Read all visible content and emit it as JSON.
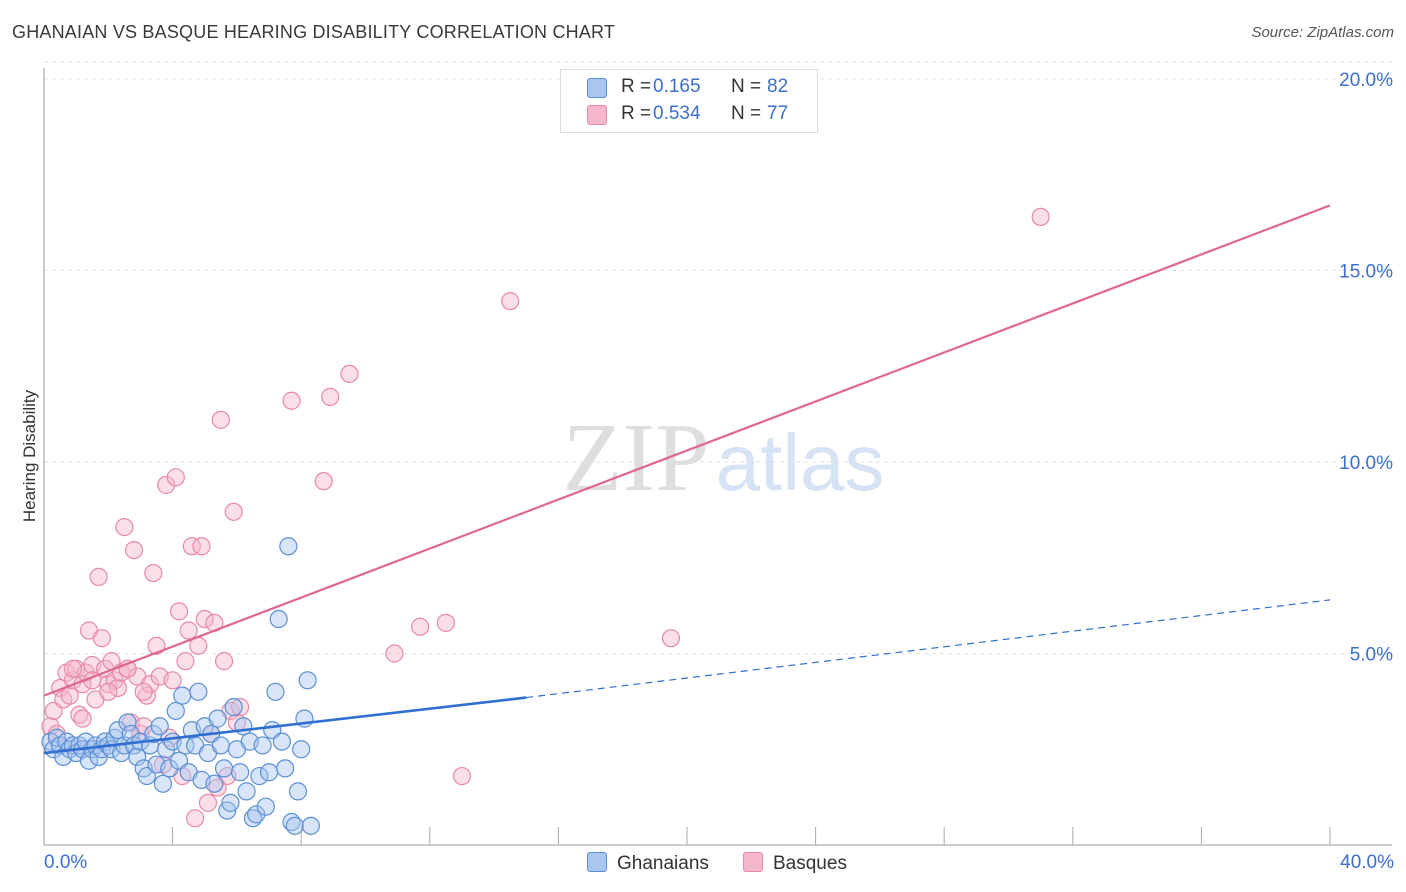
{
  "title": "GHANAIAN VS BASQUE HEARING DISABILITY CORRELATION CHART",
  "source": "Source: ZipAtlas.com",
  "colors": {
    "ghanaian_fill": "#a9c6ef",
    "ghanaian_stroke": "#5b8fd6",
    "ghanaian_line": "#2f6fcf",
    "basque_fill": "#f5b8cb",
    "basque_stroke": "#e889a7",
    "basque_line": "#e0668f",
    "tick_text": "#3a6fd0",
    "grid": "#e2e2e2"
  },
  "legend": {
    "rows": [
      {
        "r_label": "R =",
        "r_value": "0.165",
        "n_label": "N =",
        "n_value": "82"
      },
      {
        "r_label": "R =",
        "r_value": "0.534",
        "n_label": "N =",
        "n_value": "77"
      }
    ],
    "bottom": [
      "Ghanaians",
      "Basques"
    ]
  },
  "watermark": {
    "zip": "ZIP",
    "atlas": "atlas"
  },
  "chart_data": {
    "type": "scatter",
    "title": "GHANAIAN VS BASQUE HEARING DISABILITY CORRELATION CHART",
    "xlabel": "",
    "ylabel": "Hearing Disability",
    "xlim": [
      0,
      40
    ],
    "ylim": [
      0,
      20
    ],
    "x_tick_labels": [
      "0.0%",
      "40.0%"
    ],
    "y_ticks": [
      5,
      10,
      15,
      20
    ],
    "y_tick_labels": [
      "5.0%",
      "10.0%",
      "15.0%",
      "20.0%"
    ],
    "grid": true,
    "legend_position": "top-center",
    "series": [
      {
        "name": "Ghanaians",
        "r": 0.165,
        "n": 82,
        "trend": {
          "x0": 0,
          "y0": 2.4,
          "x1": 15,
          "y1": 3.85,
          "dashed_to_x": 40,
          "dashed_to_y": 6.4
        },
        "points": [
          [
            0.2,
            2.7
          ],
          [
            0.3,
            2.5
          ],
          [
            0.4,
            2.8
          ],
          [
            0.5,
            2.6
          ],
          [
            0.6,
            2.3
          ],
          [
            0.7,
            2.7
          ],
          [
            0.8,
            2.5
          ],
          [
            0.9,
            2.6
          ],
          [
            1.0,
            2.4
          ],
          [
            1.1,
            2.6
          ],
          [
            1.2,
            2.5
          ],
          [
            1.3,
            2.7
          ],
          [
            1.4,
            2.2
          ],
          [
            1.5,
            2.5
          ],
          [
            1.6,
            2.6
          ],
          [
            1.7,
            2.3
          ],
          [
            1.8,
            2.5
          ],
          [
            1.9,
            2.7
          ],
          [
            2.0,
            2.6
          ],
          [
            2.1,
            2.5
          ],
          [
            2.2,
            2.8
          ],
          [
            2.3,
            3.0
          ],
          [
            2.4,
            2.4
          ],
          [
            2.5,
            2.6
          ],
          [
            2.6,
            3.2
          ],
          [
            2.7,
            2.9
          ],
          [
            2.8,
            2.6
          ],
          [
            2.9,
            2.3
          ],
          [
            3.0,
            2.7
          ],
          [
            3.1,
            2.0
          ],
          [
            3.2,
            1.8
          ],
          [
            3.3,
            2.6
          ],
          [
            3.4,
            2.9
          ],
          [
            3.5,
            2.1
          ],
          [
            3.6,
            3.1
          ],
          [
            3.7,
            1.6
          ],
          [
            3.8,
            2.5
          ],
          [
            3.9,
            2.0
          ],
          [
            4.0,
            2.7
          ],
          [
            4.1,
            3.5
          ],
          [
            4.2,
            2.2
          ],
          [
            4.3,
            3.9
          ],
          [
            4.4,
            2.6
          ],
          [
            4.5,
            1.9
          ],
          [
            4.6,
            3.0
          ],
          [
            4.7,
            2.6
          ],
          [
            4.8,
            4.0
          ],
          [
            4.9,
            1.7
          ],
          [
            5.0,
            3.1
          ],
          [
            5.1,
            2.4
          ],
          [
            5.2,
            2.9
          ],
          [
            5.3,
            1.6
          ],
          [
            5.4,
            3.3
          ],
          [
            5.5,
            2.6
          ],
          [
            5.6,
            2.0
          ],
          [
            5.7,
            0.9
          ],
          [
            5.8,
            1.1
          ],
          [
            5.9,
            3.6
          ],
          [
            6.0,
            2.5
          ],
          [
            6.1,
            1.9
          ],
          [
            6.2,
            3.1
          ],
          [
            6.3,
            1.4
          ],
          [
            6.4,
            2.7
          ],
          [
            6.5,
            0.7
          ],
          [
            6.6,
            0.8
          ],
          [
            6.7,
            1.8
          ],
          [
            6.8,
            2.6
          ],
          [
            6.9,
            1.0
          ],
          [
            7.0,
            1.9
          ],
          [
            7.1,
            3.0
          ],
          [
            7.2,
            4.0
          ],
          [
            7.3,
            5.9
          ],
          [
            7.4,
            2.7
          ],
          [
            7.5,
            2.0
          ],
          [
            7.6,
            7.8
          ],
          [
            7.7,
            0.6
          ],
          [
            7.8,
            0.5
          ],
          [
            7.9,
            1.4
          ],
          [
            8.0,
            2.5
          ],
          [
            8.1,
            3.3
          ],
          [
            8.2,
            4.3
          ],
          [
            8.3,
            0.5
          ]
        ],
        "spread_note_ignored": true
      },
      {
        "name": "Basques",
        "r": 0.534,
        "n": 77,
        "trend": {
          "x0": 0,
          "y0": 3.9,
          "x1": 40,
          "y1": 16.7
        },
        "points": [
          [
            0.2,
            3.1
          ],
          [
            0.3,
            3.5
          ],
          [
            0.4,
            2.9
          ],
          [
            0.5,
            4.1
          ],
          [
            0.6,
            3.8
          ],
          [
            0.7,
            4.5
          ],
          [
            0.8,
            3.9
          ],
          [
            0.9,
            4.3
          ],
          [
            1.0,
            4.6
          ],
          [
            1.1,
            3.4
          ],
          [
            1.2,
            4.2
          ],
          [
            1.3,
            4.5
          ],
          [
            1.4,
            5.6
          ],
          [
            1.5,
            4.7
          ],
          [
            1.6,
            3.8
          ],
          [
            1.7,
            7.0
          ],
          [
            1.8,
            5.4
          ],
          [
            1.9,
            4.6
          ],
          [
            2.0,
            4.2
          ],
          [
            2.1,
            4.8
          ],
          [
            2.2,
            4.3
          ],
          [
            2.3,
            4.1
          ],
          [
            2.4,
            4.5
          ],
          [
            2.5,
            8.3
          ],
          [
            2.6,
            4.6
          ],
          [
            2.7,
            3.2
          ],
          [
            2.8,
            7.7
          ],
          [
            2.9,
            4.4
          ],
          [
            3.0,
            2.9
          ],
          [
            3.1,
            3.1
          ],
          [
            3.2,
            3.9
          ],
          [
            3.3,
            4.2
          ],
          [
            3.4,
            7.1
          ],
          [
            3.5,
            5.2
          ],
          [
            3.6,
            4.4
          ],
          [
            3.7,
            2.1
          ],
          [
            3.8,
            9.4
          ],
          [
            3.9,
            2.8
          ],
          [
            4.0,
            4.3
          ],
          [
            4.1,
            9.6
          ],
          [
            4.2,
            6.1
          ],
          [
            4.3,
            1.8
          ],
          [
            4.4,
            4.8
          ],
          [
            4.5,
            5.6
          ],
          [
            4.6,
            7.8
          ],
          [
            4.7,
            0.7
          ],
          [
            4.8,
            5.2
          ],
          [
            4.9,
            7.8
          ],
          [
            5.0,
            5.9
          ],
          [
            5.1,
            1.1
          ],
          [
            5.2,
            2.9
          ],
          [
            5.3,
            5.8
          ],
          [
            5.4,
            1.5
          ],
          [
            5.5,
            11.1
          ],
          [
            5.6,
            4.8
          ],
          [
            5.7,
            1.8
          ],
          [
            5.8,
            3.5
          ],
          [
            5.9,
            8.7
          ],
          [
            6.0,
            3.2
          ],
          [
            6.1,
            3.6
          ],
          [
            7.7,
            11.6
          ],
          [
            8.7,
            9.5
          ],
          [
            8.9,
            11.7
          ],
          [
            9.5,
            12.3
          ],
          [
            10.9,
            5.0
          ],
          [
            11.7,
            5.7
          ],
          [
            12.5,
            5.8
          ],
          [
            13.0,
            1.8
          ],
          [
            14.5,
            14.2
          ],
          [
            19.5,
            5.4
          ],
          [
            31.0,
            16.4
          ],
          [
            1.5,
            4.3
          ],
          [
            2.0,
            4.0
          ],
          [
            2.6,
            4.6
          ],
          [
            3.1,
            4.0
          ],
          [
            1.2,
            3.3
          ],
          [
            0.9,
            4.6
          ]
        ]
      }
    ]
  }
}
